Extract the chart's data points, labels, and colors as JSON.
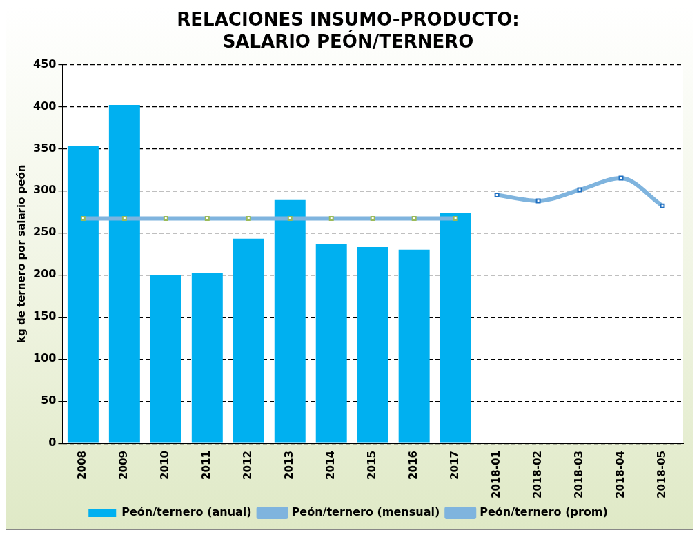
{
  "chart_data": {
    "type": "bar",
    "title": "RELACIONES INSUMO-PRODUCTO:\nSALARIO PEÓN/TERNERO",
    "ylabel": "kg de ternero por salario peón",
    "categories": [
      "2008",
      "2009",
      "2010",
      "2011",
      "2012",
      "2013",
      "2014",
      "2015",
      "2016",
      "2017",
      "2018-01",
      "2018-02",
      "2018-03",
      "2018-04",
      "2018-05"
    ],
    "series": [
      {
        "name": "Peón/ternero (anual)",
        "color": "#00b0f0",
        "values": [
          353,
          402,
          200,
          202,
          243,
          289,
          237,
          233,
          230,
          274,
          null,
          null,
          null,
          null,
          null
        ]
      },
      {
        "name": "Peón/ternero (mensual)",
        "type": "line",
        "color": "#7fb4de",
        "values": [
          null,
          null,
          null,
          null,
          null,
          null,
          null,
          null,
          null,
          null,
          295,
          288,
          301,
          315,
          282
        ]
      },
      {
        "name": "Peón/ternero (prom)",
        "type": "line",
        "color": "#7fb4de",
        "values": [
          267,
          267,
          267,
          267,
          267,
          267,
          267,
          267,
          267,
          267,
          null,
          null,
          null,
          null,
          null
        ]
      }
    ],
    "ylim": [
      0,
      450
    ],
    "yticks": [
      0,
      50,
      100,
      150,
      200,
      250,
      300,
      350,
      400,
      450
    ],
    "grid": "y",
    "legend": "bottom",
    "marker": "square"
  }
}
